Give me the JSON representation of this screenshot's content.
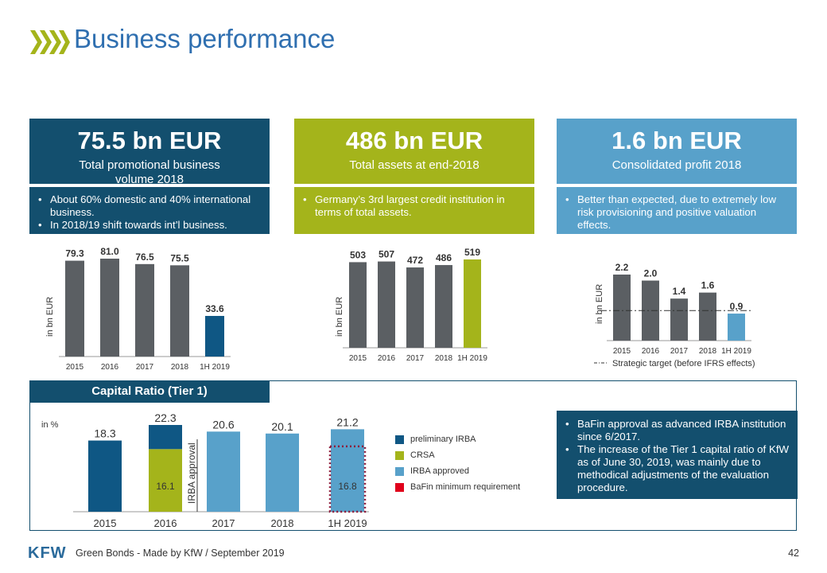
{
  "header": {
    "title": "Business performance"
  },
  "colors": {
    "dark_blue": "#134f6e",
    "navy": "#0f5784",
    "green": "#a4b41b",
    "light_blue": "#58a1ca",
    "gray_bar": "#5b5f63",
    "red": "#e0001b",
    "maroon": "#8c1b3c",
    "title_blue": "#2f6fb0"
  },
  "kpis": [
    {
      "value": "75.5 bn EUR",
      "label_line1": "Total promotional business",
      "label_line2": "volume 2018",
      "bullets": [
        "About 60% domestic and 40% international business.",
        "In 2018/19 shift towards int’l business."
      ]
    },
    {
      "value": "486 bn EUR",
      "label_line1": "Total assets at end-2018",
      "bullets": [
        "Germany’s 3rd largest credit institution in terms of total assets."
      ]
    },
    {
      "value": "1.6 bn EUR",
      "label_line1": "Consolidated profit 2018",
      "bullets": [
        "Better than expected, due to extremely low risk provisioning and positive valuation effects."
      ]
    }
  ],
  "chart_data": [
    {
      "type": "bar",
      "title": "Total promotional business volume",
      "ylabel": "in bn EUR",
      "categories": [
        "2015",
        "2016",
        "2017",
        "2018",
        "1H 2019"
      ],
      "values": [
        79.3,
        81.0,
        76.5,
        75.5,
        33.6
      ],
      "labels": [
        "79.3",
        "81.0",
        "76.5",
        "75.5",
        "33.6"
      ],
      "ylim": [
        0,
        81
      ]
    },
    {
      "type": "bar",
      "title": "Total assets",
      "ylabel": "in bn EUR",
      "categories": [
        "2015",
        "2016",
        "2017",
        "2018",
        "1H 2019"
      ],
      "values": [
        503,
        507,
        472,
        486,
        519
      ],
      "labels": [
        "503",
        "507",
        "472",
        "486",
        "519"
      ],
      "ylim": [
        0,
        519
      ]
    },
    {
      "type": "bar",
      "title": "Consolidated profit",
      "ylabel": "in bn EUR",
      "categories": [
        "2015",
        "2016",
        "2017",
        "2018",
        "1H 2019"
      ],
      "values": [
        2.2,
        2.0,
        1.4,
        1.6,
        0.9
      ],
      "labels": [
        "2.2",
        "2.0",
        "1.4",
        "1.6",
        "0.9"
      ],
      "ylim": [
        0,
        2.2
      ],
      "target": {
        "label": "Strategic target (before IFRS effects)",
        "value": 1.0
      }
    },
    {
      "type": "bar",
      "title": "Capital Ratio (Tier 1)",
      "ylabel": "in %",
      "categories": [
        "2015",
        "2016",
        "2017",
        "2018",
        "1H 2019"
      ],
      "series": [
        {
          "name": "preliminary IRBA",
          "values": [
            18.3,
            6.2,
            0,
            0,
            0
          ]
        },
        {
          "name": "CRSA",
          "values": [
            0,
            16.1,
            0,
            0,
            0
          ]
        },
        {
          "name": "IRBA approved",
          "values": [
            0,
            0,
            20.6,
            20.1,
            21.2
          ]
        },
        {
          "name": "BaFin minimum requirement",
          "values": [
            0,
            0,
            0,
            0,
            16.8
          ]
        }
      ],
      "totals": [
        "18.3",
        "22.3",
        "20.6",
        "20.1",
        "21.2"
      ],
      "inner_labels": [
        "",
        "16.1",
        "",
        "",
        "16.8"
      ],
      "annotation": "IRBA approval",
      "ylim": [
        0,
        22.3
      ]
    }
  ],
  "capital": {
    "heading": "Capital Ratio (Tier 1)",
    "bullets": [
      "BaFin approval as advanced IRBA institution since 6/2017.",
      "The increase of the Tier 1 capital ratio of KfW as of June 30, 2019, was mainly due to methodical adjustments of the evaluation procedure."
    ]
  },
  "footer": {
    "logo": "KFW",
    "text": "Green Bonds - Made by KfW / September 2019",
    "page": "42"
  }
}
